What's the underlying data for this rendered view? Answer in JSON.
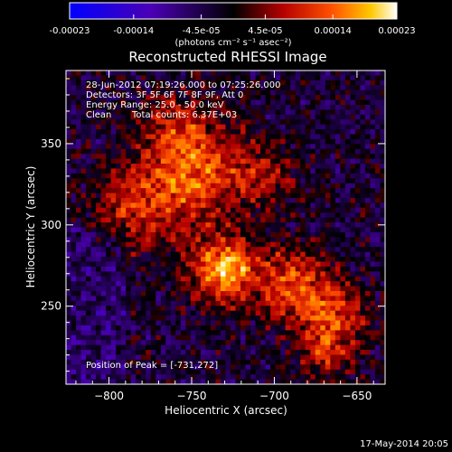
{
  "colorbar": {
    "tick_labels": [
      "-0.00023",
      "-0.00014",
      "-4.5e-05",
      "4.5e-05",
      "0.00014",
      "0.00023"
    ],
    "tick_values": [
      -0.00023,
      -0.00014,
      -4.5e-05,
      4.5e-05,
      0.00014,
      0.00023
    ],
    "range": [
      -0.00023,
      0.00023
    ],
    "units": "(photons cm⁻² s⁻¹ asec⁻²)",
    "colors": [
      "#0000ff",
      "#4b00b4",
      "#000000",
      "#b40000",
      "#ff5000",
      "#ffc800",
      "#ffffff"
    ]
  },
  "chart_data": {
    "type": "heatmap",
    "title": "Reconstructed RHESSI Image",
    "xlabel": "Heliocentric X (arcsec)",
    "ylabel": "Heliocentric Y (arcsec)",
    "xlim": [
      -826,
      -633
    ],
    "ylim": [
      202,
      395
    ],
    "xticks": [
      -800,
      -750,
      -700,
      -650
    ],
    "yticks": [
      250,
      300,
      350
    ],
    "annotations": [
      "28-Jun-2012 07:19:26.000 to 07:25:26.000",
      "Detectors: 3F 5F 6F 7F 8F 9F, Att 0",
      "Energy Range: 25.0 - 50.0 keV",
      "Clean",
      "Total counts: 6.37E+03"
    ],
    "peak_label": "Position of Peak = [-731,272]",
    "peak": [
      -731,
      272
    ],
    "grid": false
  },
  "footer": {
    "date": "17-May-2014 20:05"
  }
}
